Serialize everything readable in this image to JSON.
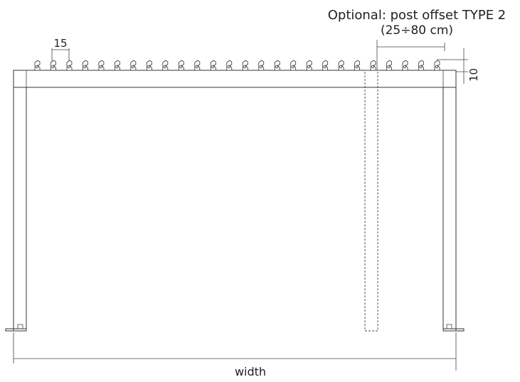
{
  "annotation": {
    "line1": "Optional: post offset TYPE 2",
    "line2": "(25÷80 cm)"
  },
  "dimensions": {
    "louver_spacing": "15",
    "louver_height": "10",
    "width": "width"
  },
  "louvers": {
    "count": 26
  }
}
